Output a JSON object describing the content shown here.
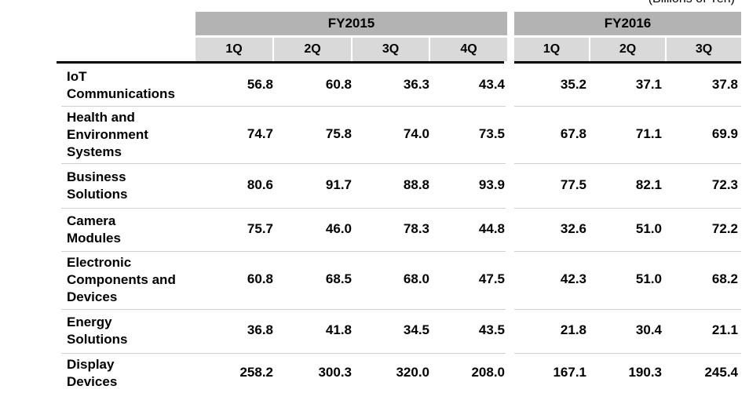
{
  "unit_label": "(Billions of Yen)",
  "groups": [
    {
      "label": "FY2015",
      "quarters": [
        "1Q",
        "2Q",
        "3Q",
        "4Q"
      ]
    },
    {
      "label": "FY2016",
      "quarters": [
        "1Q",
        "2Q",
        "3Q"
      ]
    }
  ],
  "rows": [
    {
      "label_lines": [
        "IoT",
        "Communications"
      ],
      "values": [
        "56.8",
        "60.8",
        "36.3",
        "43.4",
        "35.2",
        "37.1",
        "37.8"
      ]
    },
    {
      "label_lines": [
        "Health and",
        "Environment",
        "Systems"
      ],
      "values": [
        "74.7",
        "75.8",
        "74.0",
        "73.5",
        "67.8",
        "71.1",
        "69.9"
      ]
    },
    {
      "label_lines": [
        "Business",
        "Solutions"
      ],
      "values": [
        "80.6",
        "91.7",
        "88.8",
        "93.9",
        "77.5",
        "82.1",
        "72.3"
      ]
    },
    {
      "label_lines": [
        "Camera",
        "Modules"
      ],
      "values": [
        "75.7",
        "46.0",
        "78.3",
        "44.8",
        "32.6",
        "51.0",
        "72.2"
      ]
    },
    {
      "label_lines": [
        "Electronic",
        "Components and",
        "Devices"
      ],
      "values": [
        "60.8",
        "68.5",
        "68.0",
        "47.5",
        "42.3",
        "51.0",
        "68.2"
      ]
    },
    {
      "label_lines": [
        "Energy",
        "Solutions"
      ],
      "values": [
        "36.8",
        "41.8",
        "34.5",
        "43.5",
        "21.8",
        "30.4",
        "21.1"
      ]
    },
    {
      "label_lines": [
        "Display",
        "Devices"
      ],
      "values": [
        "258.2",
        "300.3",
        "320.0",
        "208.0",
        "167.1",
        "190.3",
        "245.4"
      ]
    }
  ]
}
